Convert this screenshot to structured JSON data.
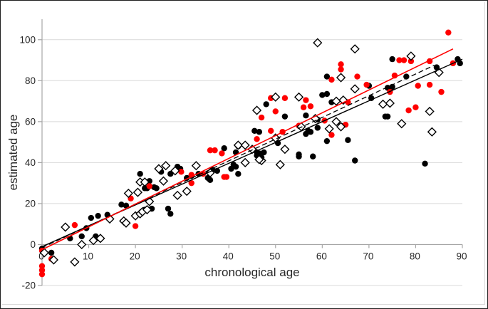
{
  "chart_data": {
    "type": "scatter",
    "title": "",
    "xlabel": "chronological age",
    "ylabel": "estimated age",
    "x_axis": {
      "min": 0,
      "max": 90,
      "ticks": [
        0,
        10,
        20,
        30,
        40,
        50,
        60,
        70,
        80,
        90
      ]
    },
    "y_axis": {
      "min": -20,
      "max": 110,
      "ticks": [
        -20,
        0,
        20,
        40,
        60,
        80,
        100
      ]
    },
    "grid": "horizontal-only",
    "legend": "none",
    "style": {
      "gridline_color": "#d9d9d9",
      "axis_color": "#a6a6a6",
      "text_color": "#262626",
      "background": "#ffffff",
      "chart_border_color": "#d9d9d9"
    },
    "series": [
      {
        "name": "black filled circles",
        "marker": "circle",
        "color": "#000000",
        "points": [
          [
            0,
            -2
          ],
          [
            2,
            -4
          ],
          [
            6,
            3
          ],
          [
            8.5,
            4
          ],
          [
            9.5,
            8
          ],
          [
            10.5,
            13
          ],
          [
            12,
            14
          ],
          [
            14,
            14.5
          ],
          [
            11.5,
            4
          ],
          [
            17,
            19.5
          ],
          [
            18,
            19
          ],
          [
            22,
            17
          ],
          [
            23.5,
            17.5
          ],
          [
            21,
            34.5
          ],
          [
            25,
            37
          ],
          [
            25.5,
            35.5
          ],
          [
            27.5,
            34.5
          ],
          [
            23,
            31
          ],
          [
            22,
            27.5
          ],
          [
            22.5,
            27.5
          ],
          [
            24,
            28
          ],
          [
            24.5,
            27.5
          ],
          [
            27,
            17.5
          ],
          [
            27.5,
            15
          ],
          [
            29,
            38
          ],
          [
            29.6,
            37
          ],
          [
            31,
            32.5
          ],
          [
            32,
            33.5
          ],
          [
            33.5,
            34.5
          ],
          [
            35.5,
            32.5
          ],
          [
            36,
            31.5
          ],
          [
            36.5,
            36.5
          ],
          [
            37.5,
            36
          ],
          [
            40.5,
            37
          ],
          [
            41,
            39
          ],
          [
            41.5,
            38
          ],
          [
            39,
            47
          ],
          [
            41.5,
            45
          ],
          [
            42,
            48
          ],
          [
            42,
            34.5
          ],
          [
            45.5,
            55.5
          ],
          [
            46.5,
            55
          ],
          [
            46,
            45
          ],
          [
            46.5,
            44.5
          ],
          [
            47.5,
            45
          ],
          [
            50.5,
            49.5
          ],
          [
            55,
            44
          ],
          [
            46,
            43.5
          ],
          [
            47,
            42.5
          ],
          [
            55,
            43
          ],
          [
            58,
            43
          ],
          [
            48,
            68.5
          ],
          [
            52,
            62.5
          ],
          [
            60,
            73
          ],
          [
            61,
            73.5
          ],
          [
            61,
            82
          ],
          [
            62,
            69.5
          ],
          [
            56.5,
            63
          ],
          [
            57,
            55.5
          ],
          [
            57.5,
            55
          ],
          [
            56.5,
            54
          ],
          [
            59,
            57
          ],
          [
            59,
            61
          ],
          [
            64,
            58
          ],
          [
            61,
            50.5
          ],
          [
            65.5,
            51
          ],
          [
            67,
            41
          ],
          [
            70.5,
            71.5
          ],
          [
            70,
            77.5
          ],
          [
            74,
            76.5
          ],
          [
            75,
            77
          ],
          [
            74,
            62.5
          ],
          [
            73.5,
            62.5
          ],
          [
            75,
            90.5
          ],
          [
            78,
            82
          ],
          [
            82,
            39.5
          ],
          [
            84.5,
            86.5
          ],
          [
            89,
            90.5
          ],
          [
            89.5,
            88.5
          ]
        ]
      },
      {
        "name": "red filled circles",
        "marker": "circle",
        "color": "#ff0000",
        "points": [
          [
            0,
            -3
          ],
          [
            0,
            -10.5
          ],
          [
            0,
            -12.5
          ],
          [
            0,
            -14.5
          ],
          [
            2,
            -7
          ],
          [
            7,
            9.5
          ],
          [
            20,
            9
          ],
          [
            19,
            22.5
          ],
          [
            23,
            28.5
          ],
          [
            29.8,
            35.5
          ],
          [
            32,
            34
          ],
          [
            34.5,
            34.5
          ],
          [
            32,
            30
          ],
          [
            36,
            46
          ],
          [
            37,
            46
          ],
          [
            38.5,
            44.5
          ],
          [
            39,
            33
          ],
          [
            39.5,
            33
          ],
          [
            46,
            51.5
          ],
          [
            49,
            55.5
          ],
          [
            51.5,
            55
          ],
          [
            47,
            62
          ],
          [
            50,
            65
          ],
          [
            49,
            71.5
          ],
          [
            52,
            71.5
          ],
          [
            56.5,
            70.5
          ],
          [
            57.5,
            67.5
          ],
          [
            56,
            67
          ],
          [
            55,
            58
          ],
          [
            62,
            53.5
          ],
          [
            65,
            58.5
          ],
          [
            60.5,
            60.5
          ],
          [
            62,
            80.5
          ],
          [
            64,
            88
          ],
          [
            64,
            85.5
          ],
          [
            65.5,
            69.5
          ],
          [
            67.5,
            82
          ],
          [
            69.5,
            78
          ],
          [
            74.5,
            74.5
          ],
          [
            75.5,
            82.5
          ],
          [
            76.5,
            90
          ],
          [
            77.5,
            90
          ],
          [
            79,
            89.5
          ],
          [
            83,
            89.5
          ],
          [
            87,
            103.5
          ],
          [
            88,
            88.5
          ],
          [
            85.5,
            74.5
          ],
          [
            80.5,
            77.5
          ],
          [
            83,
            78
          ],
          [
            78.5,
            65.5
          ],
          [
            80,
            67
          ]
        ]
      },
      {
        "name": "open diamonds",
        "marker": "diamond",
        "color": "#000000",
        "fill": "#ffffff",
        "points": [
          [
            0.5,
            -4
          ],
          [
            2.5,
            -7.5
          ],
          [
            7,
            -8.5
          ],
          [
            8.5,
            0
          ],
          [
            5,
            8.5
          ],
          [
            11,
            2
          ],
          [
            12.5,
            3
          ],
          [
            14.5,
            12.5
          ],
          [
            17.5,
            11.5
          ],
          [
            18,
            10.5
          ],
          [
            20,
            14
          ],
          [
            21,
            15
          ],
          [
            21.5,
            16
          ],
          [
            22.5,
            17
          ],
          [
            18.5,
            25
          ],
          [
            20.5,
            25.5
          ],
          [
            21,
            30.5
          ],
          [
            22,
            30.5
          ],
          [
            26,
            31
          ],
          [
            23,
            21
          ],
          [
            25,
            37
          ],
          [
            26.5,
            38.5
          ],
          [
            28.5,
            36
          ],
          [
            33,
            38.5
          ],
          [
            29,
            24
          ],
          [
            31,
            26
          ],
          [
            36,
            35
          ],
          [
            43.5,
            40
          ],
          [
            47,
            41
          ],
          [
            51,
            39
          ],
          [
            42,
            48.5
          ],
          [
            43.5,
            48.5
          ],
          [
            45,
            46.5
          ],
          [
            46.5,
            41.5
          ],
          [
            50,
            52
          ],
          [
            52,
            46.5
          ],
          [
            46,
            65.5
          ],
          [
            50,
            72
          ],
          [
            55,
            72
          ],
          [
            55.5,
            57.5
          ],
          [
            58.5,
            61.5
          ],
          [
            61.5,
            56.5
          ],
          [
            63,
            60
          ],
          [
            64,
            57.5
          ],
          [
            63,
            70
          ],
          [
            64.5,
            70.5
          ],
          [
            64,
            81.5
          ],
          [
            67,
            76
          ],
          [
            59,
            98.5
          ],
          [
            67,
            95.5
          ],
          [
            73,
            68.5
          ],
          [
            74.5,
            69
          ],
          [
            77,
            59
          ],
          [
            83.5,
            55
          ],
          [
            83,
            65
          ],
          [
            79,
            92
          ],
          [
            85,
            84
          ]
        ]
      }
    ],
    "trend_lines": [
      {
        "name": "black solid regression",
        "color": "#000000",
        "dash": "none",
        "width": 1.4,
        "from": [
          0,
          -1
        ],
        "to": [
          90,
          90.5
        ]
      },
      {
        "name": "black dashed regression",
        "color": "#000000",
        "dash": "7 4",
        "width": 1.3,
        "from": [
          0,
          -1.5
        ],
        "to": [
          84,
          87.5
        ]
      },
      {
        "name": "red solid regression",
        "color": "#ff0000",
        "dash": "none",
        "width": 1.6,
        "from": [
          0,
          -2.5
        ],
        "to": [
          88,
          95.5
        ]
      }
    ]
  }
}
